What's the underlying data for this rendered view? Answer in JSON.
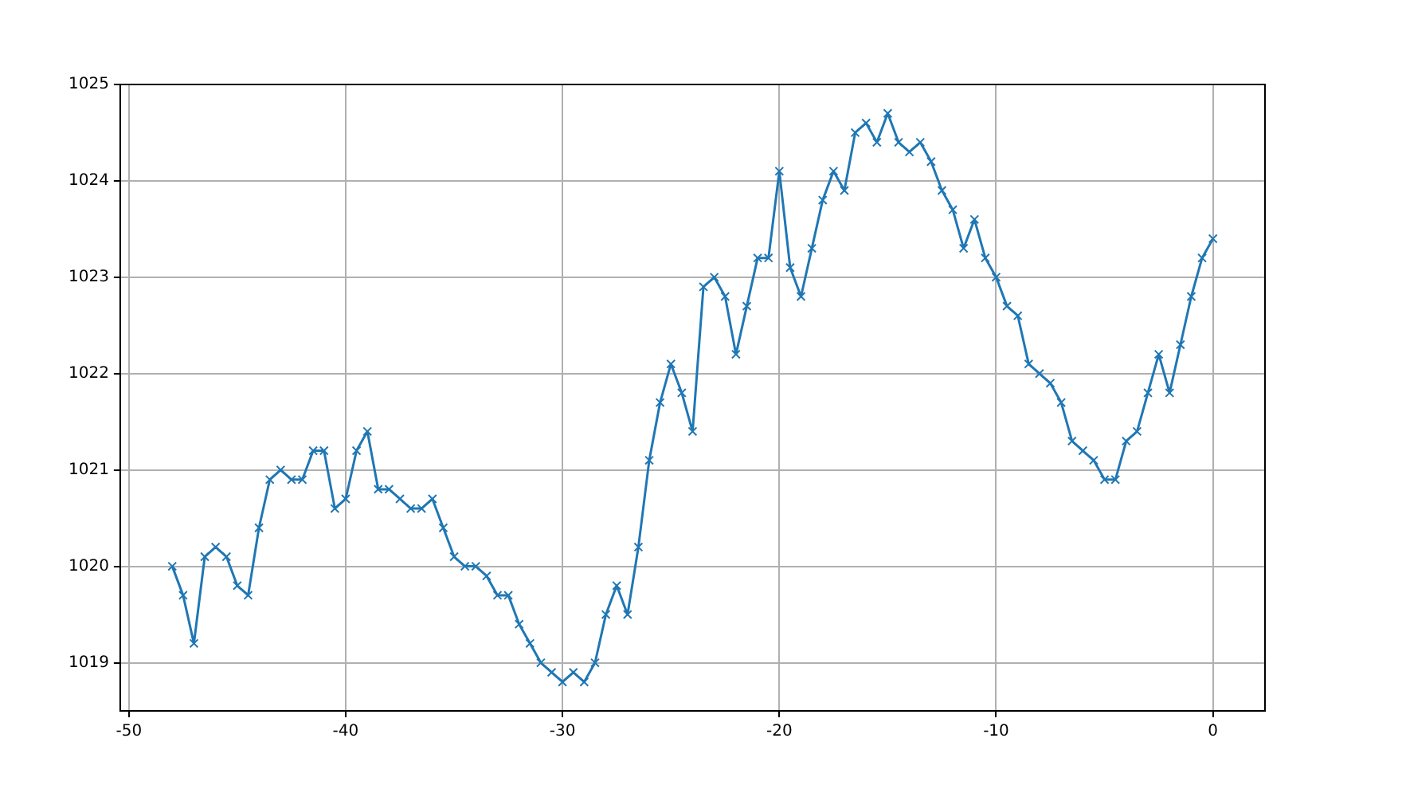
{
  "chart_data": {
    "type": "line",
    "x": [
      -48,
      -47.5,
      -47,
      -46.5,
      -46,
      -45.5,
      -45,
      -44.5,
      -44,
      -43.5,
      -43,
      -42.5,
      -42,
      -41.5,
      -41,
      -40.5,
      -40,
      -39.5,
      -39,
      -38.5,
      -38,
      -37.5,
      -37,
      -36.5,
      -36,
      -35.5,
      -35,
      -34.5,
      -34,
      -33.5,
      -33,
      -32.5,
      -32,
      -31.5,
      -31,
      -30.5,
      -30,
      -29.5,
      -29,
      -28.5,
      -28,
      -27.5,
      -27,
      -26.5,
      -26,
      -25.5,
      -25,
      -24.5,
      -24,
      -23.5,
      -23,
      -22.5,
      -22,
      -21.5,
      -21,
      -20.5,
      -20,
      -19.5,
      -19,
      -18.5,
      -18,
      -17.5,
      -17,
      -16.5,
      -16,
      -15.5,
      -15,
      -14.5,
      -14,
      -13.5,
      -13,
      -12.5,
      -12,
      -11.5,
      -11,
      -10.5,
      -10,
      -9.5,
      -9,
      -8.5,
      -8,
      -7.5,
      -7,
      -6.5,
      -6,
      -5.5,
      -5,
      -4.5,
      -4,
      -3.5,
      -3,
      -2.5,
      -2,
      -1.5,
      -1,
      -0.5,
      0
    ],
    "series": [
      {
        "color": "#1f77b4",
        "values": [
          1020.0,
          1019.7,
          1019.2,
          1020.1,
          1020.2,
          1020.1,
          1019.8,
          1019.7,
          1020.4,
          1020.9,
          1021.0,
          1020.9,
          1020.9,
          1021.2,
          1021.2,
          1020.6,
          1020.7,
          1021.2,
          1021.4,
          1020.8,
          1020.8,
          1020.7,
          1020.6,
          1020.6,
          1020.7,
          1020.4,
          1020.1,
          1020.0,
          1020.0,
          1019.9,
          1019.7,
          1019.7,
          1019.4,
          1019.2,
          1019.0,
          1018.9,
          1018.8,
          1018.9,
          1018.8,
          1019.0,
          1019.5,
          1019.8,
          1019.5,
          1020.2,
          1021.1,
          1021.7,
          1022.1,
          1021.8,
          1021.4,
          1022.9,
          1023.0,
          1022.8,
          1022.2,
          1022.7,
          1023.2,
          1023.2,
          1024.1,
          1023.1,
          1022.8,
          1023.3,
          1023.8,
          1024.1,
          1023.9,
          1024.5,
          1024.6,
          1024.4,
          1024.7,
          1024.4,
          1024.3,
          1024.4,
          1024.2,
          1023.9,
          1023.7,
          1023.3,
          1023.6,
          1023.2,
          1023.0,
          1022.7,
          1022.6,
          1022.1,
          1022.0,
          1021.9,
          1021.7,
          1021.3,
          1021.2,
          1021.1,
          1020.9,
          1020.9,
          1021.3,
          1021.4,
          1021.8,
          1022.2,
          1021.8,
          1022.3,
          1022.8,
          1023.2,
          1023.4
        ]
      }
    ],
    "xlim": [
      -50.4,
      2.4
    ],
    "xticks": [
      -50,
      -40,
      -30,
      -20,
      -10,
      0
    ],
    "ylim": [
      1018.5,
      1025
    ],
    "yticks": [
      1019,
      1020,
      1021,
      1022,
      1023,
      1024,
      1025
    ],
    "grid": true,
    "marker": "cross",
    "line_style": "solid",
    "legend": false
  }
}
